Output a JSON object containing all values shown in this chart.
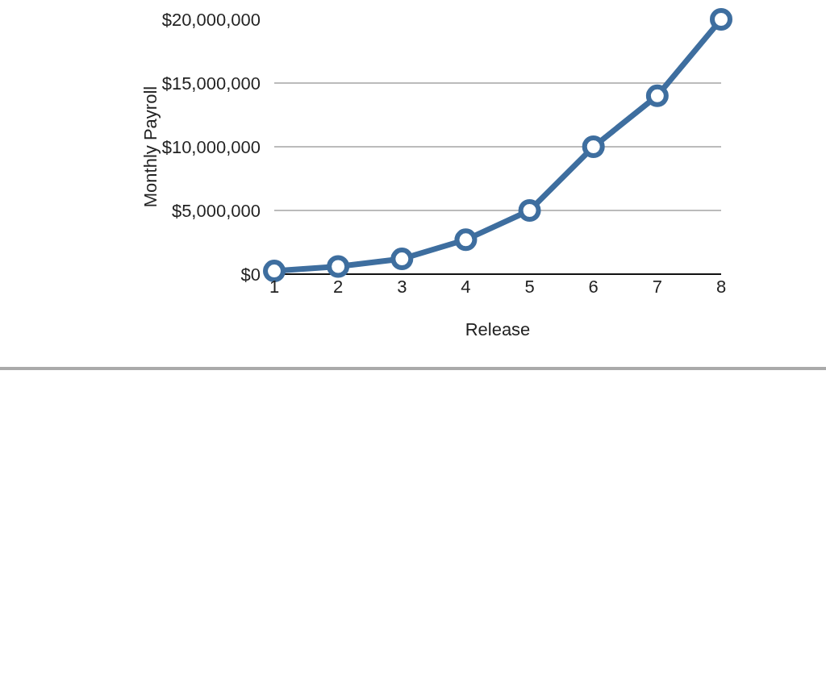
{
  "chart_data": {
    "type": "line",
    "xlabel": "Release",
    "ylabel": "Monthly Payroll",
    "x": [
      1,
      2,
      3,
      4,
      5,
      6,
      7,
      8
    ],
    "series": [
      {
        "color": "#3e6e9f",
        "values": [
          250000,
          600000,
          1200000,
          2700000,
          5000000,
          10000000,
          14000000,
          20000000
        ]
      }
    ],
    "xlim": [
      1,
      8
    ],
    "xticks": [
      1,
      2,
      3,
      4,
      5,
      6,
      7,
      8
    ],
    "ylim": [
      0,
      20000000
    ],
    "yticks": [
      {
        "value": 0,
        "label": "$0"
      },
      {
        "value": 5000000,
        "label": "$5,000,000"
      },
      {
        "value": 10000000,
        "label": "$10,000,000"
      },
      {
        "value": 15000000,
        "label": "$15,000,000"
      },
      {
        "value": 20000000,
        "label": "$20,000,000"
      }
    ],
    "grid": "y",
    "legend": false,
    "marker": "circle",
    "line_style": "solid"
  }
}
